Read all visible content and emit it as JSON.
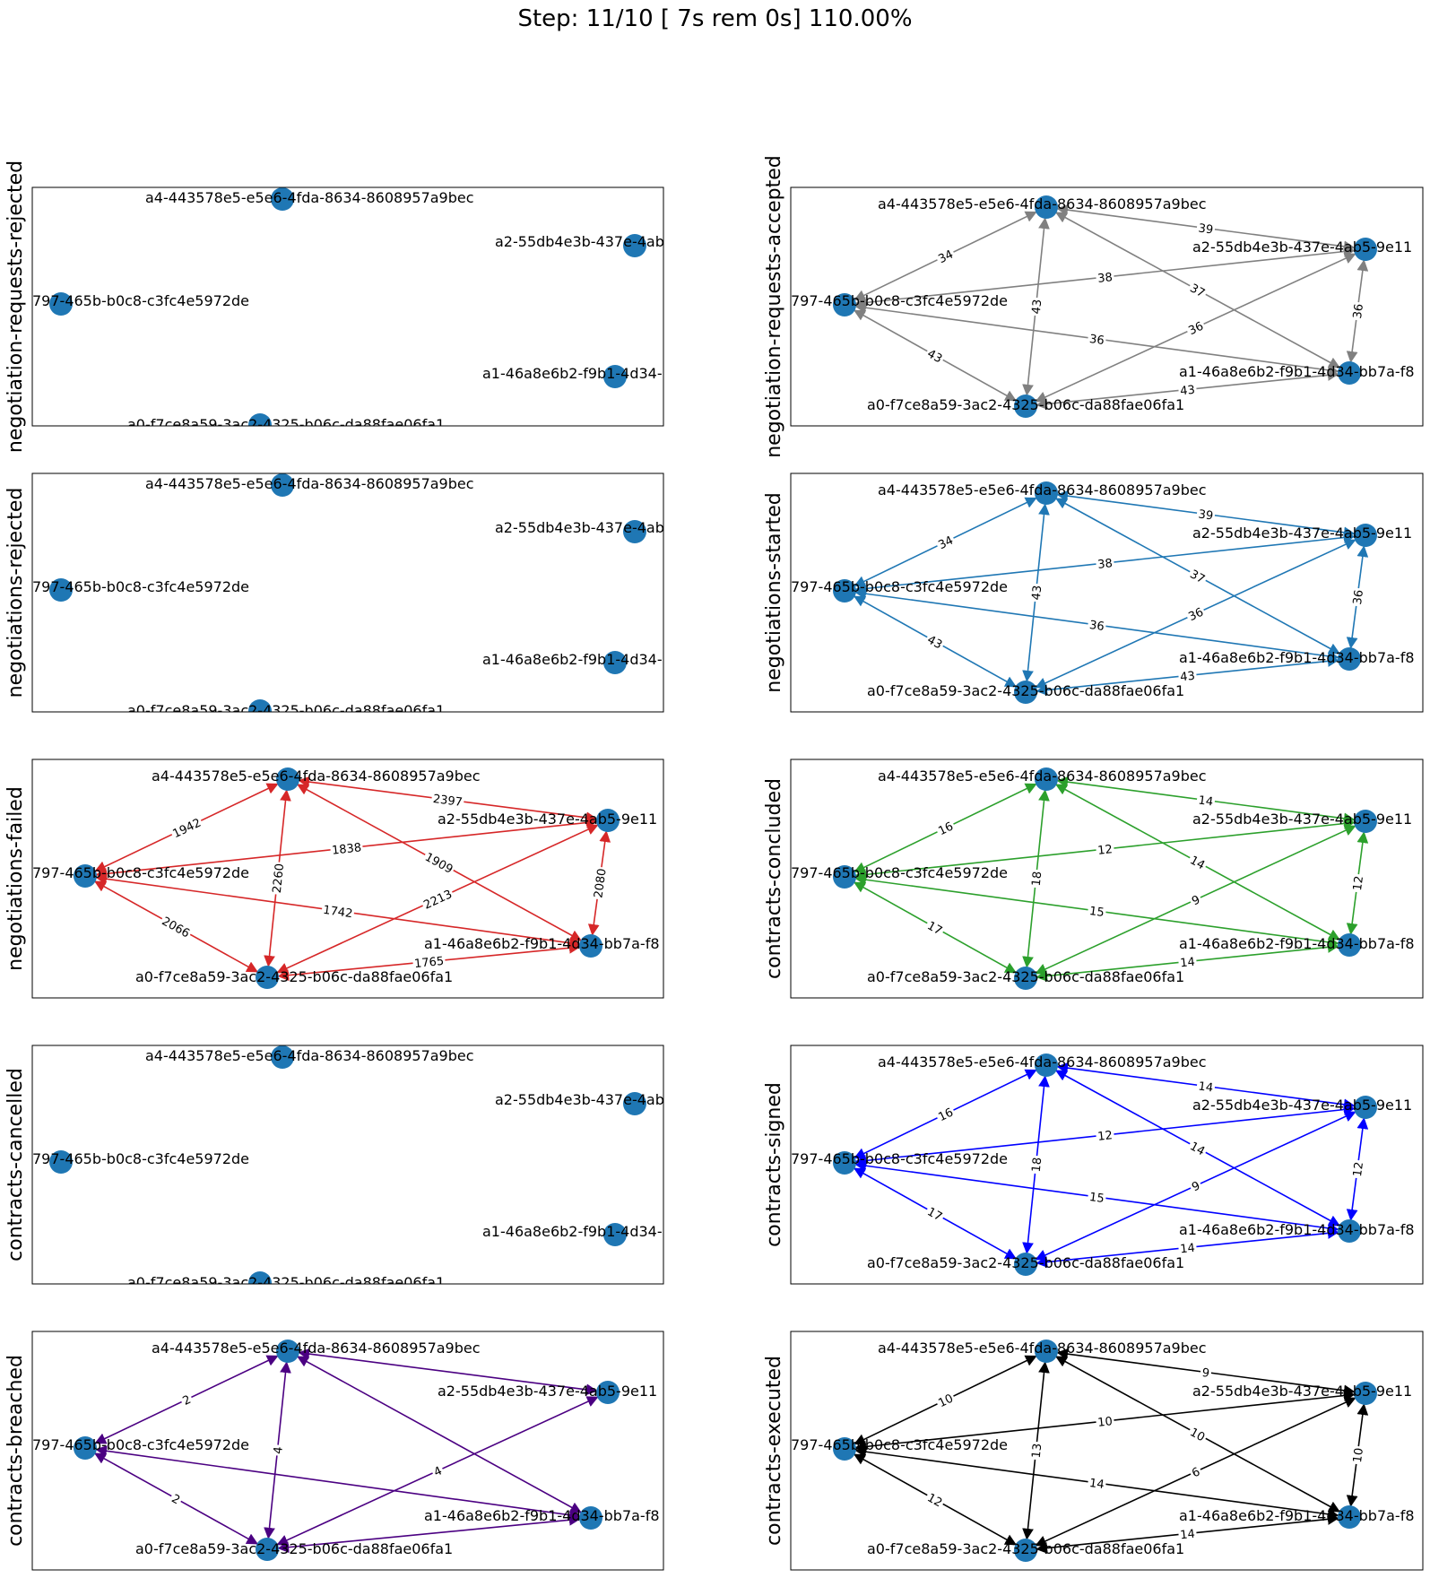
{
  "title": "Step: 11/10 [ 7s rem  0s] 110.00%",
  "node_color": "#1f77b4",
  "nodes": {
    "a4": "a4-443578e5-e5e6-4fda-8634-8608957a9bec",
    "a2": "a2-55db4e3b-437e-4ab5-9e11",
    "a3": "797-465b-b0c8-c3fc4e5972de",
    "a1": "a1-46a8e6b2-f9b1-4d34-bb7a-f8",
    "a0": "a0-f7ce8a59-3ac2-4325-b06c-da88fae06fa1"
  },
  "panels": [
    {
      "label": "negotiation-requests-rejected",
      "color": "#808080",
      "layout": "left-small",
      "edges": []
    },
    {
      "label": "negotiation-requests-accepted",
      "color": "#808080",
      "layout": "right",
      "edges": [
        [
          "a3",
          "a4",
          "34"
        ],
        [
          "a3",
          "a2",
          "38"
        ],
        [
          "a3",
          "a1",
          "36"
        ],
        [
          "a3",
          "a0",
          "43"
        ],
        [
          "a4",
          "a2",
          "39"
        ],
        [
          "a4",
          "a1",
          "37"
        ],
        [
          "a4",
          "a0",
          "43"
        ],
        [
          "a2",
          "a1",
          "36"
        ],
        [
          "a2",
          "a0",
          "36"
        ],
        [
          "a1",
          "a0",
          "43"
        ]
      ]
    },
    {
      "label": "negotiations-rejected",
      "color": "#1f77b4",
      "layout": "left-small",
      "edges": []
    },
    {
      "label": "negotiations-started",
      "color": "#1f77b4",
      "layout": "right",
      "edges": [
        [
          "a3",
          "a4",
          "34"
        ],
        [
          "a3",
          "a2",
          "38"
        ],
        [
          "a3",
          "a1",
          "36"
        ],
        [
          "a3",
          "a0",
          "43"
        ],
        [
          "a4",
          "a2",
          "39"
        ],
        [
          "a4",
          "a1",
          "37"
        ],
        [
          "a4",
          "a0",
          "43"
        ],
        [
          "a2",
          "a1",
          "36"
        ],
        [
          "a2",
          "a0",
          "36"
        ],
        [
          "a1",
          "a0",
          "43"
        ]
      ]
    },
    {
      "label": "negotiations-failed",
      "color": "#d62728",
      "layout": "left-wide",
      "edges": [
        [
          "a3",
          "a4",
          "1942"
        ],
        [
          "a3",
          "a2",
          "1838"
        ],
        [
          "a3",
          "a1",
          "1742"
        ],
        [
          "a3",
          "a0",
          "2066"
        ],
        [
          "a4",
          "a2",
          "2397"
        ],
        [
          "a4",
          "a1",
          "1909"
        ],
        [
          "a4",
          "a0",
          "2260"
        ],
        [
          "a2",
          "a1",
          "2080"
        ],
        [
          "a2",
          "a0",
          "2213"
        ],
        [
          "a1",
          "a0",
          "1765"
        ]
      ]
    },
    {
      "label": "contracts-concluded",
      "color": "#2ca02c",
      "layout": "right",
      "edges": [
        [
          "a3",
          "a4",
          "16"
        ],
        [
          "a3",
          "a2",
          "12"
        ],
        [
          "a3",
          "a1",
          "15"
        ],
        [
          "a3",
          "a0",
          "17"
        ],
        [
          "a4",
          "a2",
          "14"
        ],
        [
          "a4",
          "a1",
          "14"
        ],
        [
          "a4",
          "a0",
          "18"
        ],
        [
          "a2",
          "a1",
          "12"
        ],
        [
          "a2",
          "a0",
          "9"
        ],
        [
          "a1",
          "a0",
          "14"
        ]
      ]
    },
    {
      "label": "contracts-cancelled",
      "color": "#808080",
      "layout": "left-small",
      "edges": []
    },
    {
      "label": "contracts-signed",
      "color": "#0000ff",
      "layout": "right",
      "edges": [
        [
          "a3",
          "a4",
          "16"
        ],
        [
          "a3",
          "a2",
          "12"
        ],
        [
          "a3",
          "a1",
          "15"
        ],
        [
          "a3",
          "a0",
          "17"
        ],
        [
          "a4",
          "a2",
          "14"
        ],
        [
          "a4",
          "a1",
          "14"
        ],
        [
          "a4",
          "a0",
          "18"
        ],
        [
          "a2",
          "a1",
          "12"
        ],
        [
          "a2",
          "a0",
          "9"
        ],
        [
          "a1",
          "a0",
          "14"
        ]
      ]
    },
    {
      "label": "contracts-breached",
      "color": "#4b0082",
      "layout": "left-wide",
      "edges": [
        [
          "a3",
          "a4",
          "2"
        ],
        [
          "a3",
          "a1",
          ""
        ],
        [
          "a3",
          "a0",
          "2"
        ],
        [
          "a4",
          "a2",
          ""
        ],
        [
          "a4",
          "a1",
          ""
        ],
        [
          "a4",
          "a0",
          "4"
        ],
        [
          "a2",
          "a0",
          "4"
        ],
        [
          "a1",
          "a0",
          ""
        ]
      ]
    },
    {
      "label": "contracts-executed",
      "color": "#000000",
      "layout": "right",
      "edges": [
        [
          "a3",
          "a4",
          "10"
        ],
        [
          "a3",
          "a2",
          "10"
        ],
        [
          "a3",
          "a1",
          "14"
        ],
        [
          "a3",
          "a0",
          "12"
        ],
        [
          "a4",
          "a2",
          "9"
        ],
        [
          "a4",
          "a1",
          "10"
        ],
        [
          "a4",
          "a0",
          "13"
        ],
        [
          "a2",
          "a1",
          "10"
        ],
        [
          "a2",
          "a0",
          "6"
        ],
        [
          "a1",
          "a0",
          "14"
        ]
      ]
    }
  ]
}
